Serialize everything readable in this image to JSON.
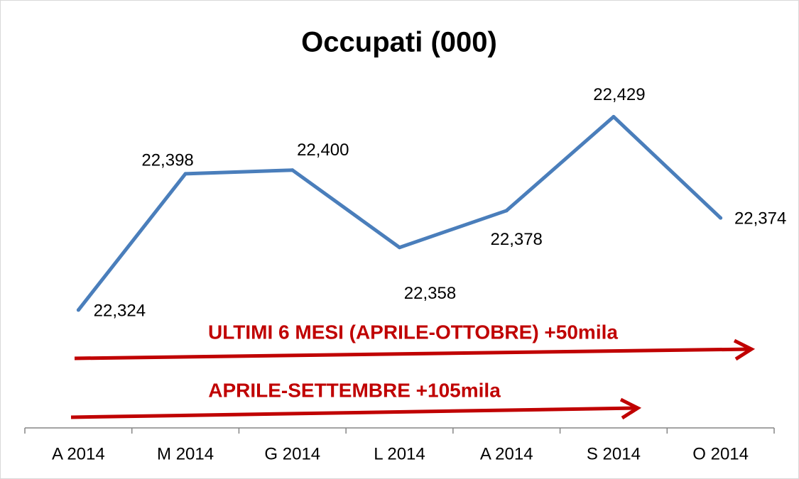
{
  "chart_data": {
    "type": "line",
    "title": "Occupati (000)",
    "categories": [
      "A 2014",
      "M 2014",
      "G 2014",
      "L 2014",
      "A 2014",
      "S 2014",
      "O 2014"
    ],
    "series": [
      {
        "color": "#4a7ebb",
        "values": [
          22324,
          22398,
          22400,
          22358,
          22378,
          22429,
          22374
        ],
        "value_labels": [
          "22,324",
          "22,398",
          "22,400",
          "22,358",
          "22,378",
          "22,429",
          "22,374"
        ]
      }
    ],
    "ylim": [
      22260,
      22455
    ],
    "annotations": [
      "ULTIMI 6 MESI (APRILE-OTTOBRE) +50mila",
      "APRILE-SETTEMBRE +105mila"
    ],
    "annotation_color": "#c00000"
  }
}
